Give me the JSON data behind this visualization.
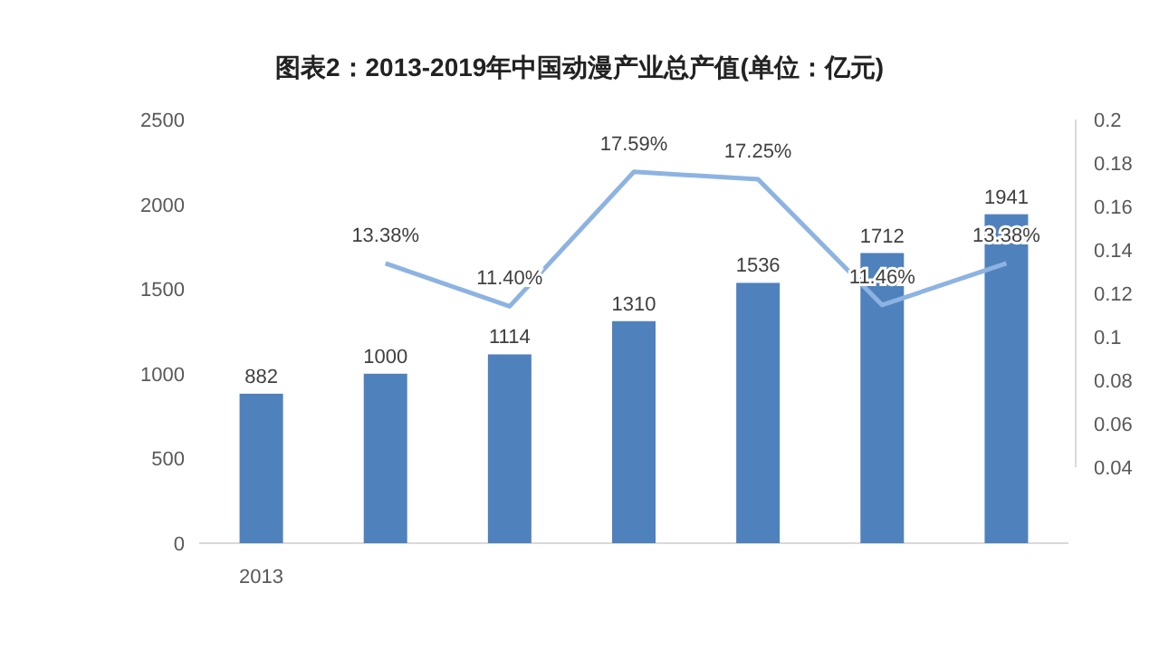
{
  "chart_data": {
    "type": "bar",
    "title": "图表2：2013-2019年中国动漫产业总产值(单位：亿元)",
    "categories": [
      "2013",
      null,
      null,
      null,
      null,
      null,
      null
    ],
    "series": [
      {
        "color": "#4f81bd",
        "values": [
          882,
          1000,
          1114,
          1310,
          1536,
          1712,
          1941
        ],
        "data_labels": true
      },
      {
        "type": "line",
        "axis": "y2",
        "color": "#8db3e2",
        "values": [
          null,
          0.1338,
          0.114,
          0.1759,
          0.1725,
          0.1146,
          0.1338
        ],
        "value_labels": [
          null,
          "13.38%",
          "11.40%",
          "17.59%",
          "17.25%",
          "11.46%",
          "13.38%"
        ],
        "marker": "none"
      }
    ],
    "ylim": [
      0,
      2500
    ],
    "yticks": [
      0,
      500,
      1000,
      1500,
      2000,
      2500
    ],
    "y2lim": [
      0.005,
      0.2
    ],
    "y2ticks": [
      0.04,
      0.06,
      0.08,
      0.1,
      0.12,
      0.14,
      0.16,
      0.18,
      0.2
    ],
    "grid": false
  }
}
